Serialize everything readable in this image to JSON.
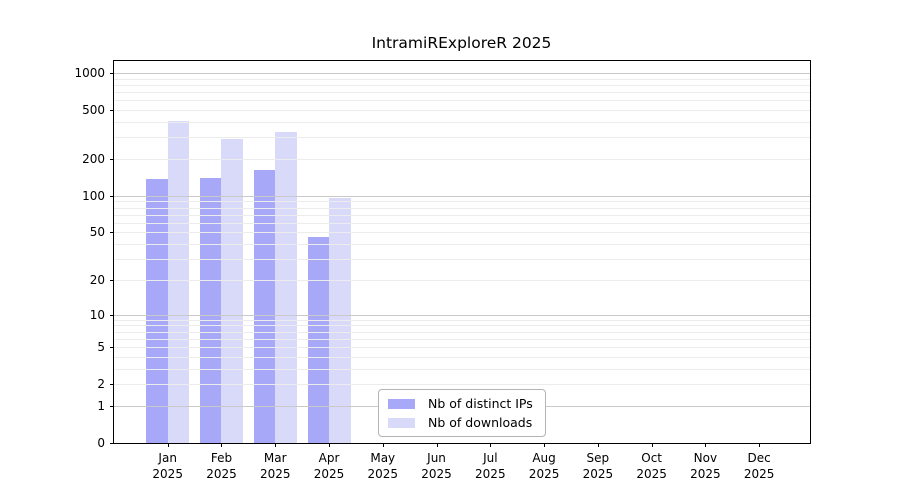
{
  "figure": {
    "title": "IntramiRExploreR 2025",
    "background": "#ffffff"
  },
  "legend": {
    "items": [
      {
        "label": "Nb of distinct IPs",
        "series_index": 0
      },
      {
        "label": "Nb of downloads",
        "series_index": 1
      }
    ]
  },
  "colors": {
    "distinct_ips_bar": "#a8a8f8",
    "downloads_bar": "#d9d9fa",
    "grid_major": "#c9c9c9",
    "grid_minor": "#ececec",
    "spine": "#000000"
  },
  "chart_data": {
    "type": "bar",
    "title": "IntramiRExploreR 2025",
    "categories": [
      "Jan 2025",
      "Feb 2025",
      "Mar 2025",
      "Apr 2025",
      "May 2025",
      "Jun 2025",
      "Jul 2025",
      "Aug 2025",
      "Sep 2025",
      "Oct 2025",
      "Nov 2025",
      "Dec 2025"
    ],
    "month_labels": [
      "Jan",
      "Feb",
      "Mar",
      "Apr",
      "May",
      "Jun",
      "Jul",
      "Aug",
      "Sep",
      "Oct",
      "Nov",
      "Dec"
    ],
    "year_label": "2025",
    "series": [
      {
        "name": "Nb of distinct IPs",
        "color": "#a8a8f8",
        "values": [
          137,
          140,
          162,
          46,
          null,
          null,
          null,
          null,
          null,
          null,
          null,
          null
        ]
      },
      {
        "name": "Nb of downloads",
        "color": "#d9d9fa",
        "values": [
          405,
          290,
          330,
          96,
          null,
          null,
          null,
          null,
          null,
          null,
          null,
          null
        ]
      }
    ],
    "yscale": "log1p",
    "yticks": [
      0,
      1,
      2,
      5,
      10,
      20,
      50,
      100,
      200,
      500,
      1000
    ],
    "ylim": [
      0,
      1250
    ],
    "grid": "horizontal",
    "grid_major_at": [
      1,
      10,
      100,
      1000
    ],
    "grid_minor_per_decade": [
      2,
      3,
      4,
      5,
      6,
      7,
      8,
      9
    ],
    "legend_entries": [
      "Nb of distinct IPs",
      "Nb of downloads"
    ],
    "xlabel": "",
    "ylabel": ""
  }
}
